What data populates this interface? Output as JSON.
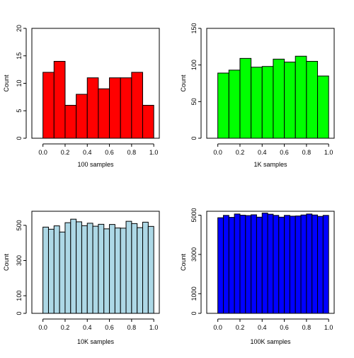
{
  "chart_data": [
    {
      "type": "bar",
      "xlabel": "100 samples",
      "ylabel": "Count",
      "xlim": [
        -0.1,
        1.05
      ],
      "ylim": [
        0,
        20
      ],
      "xticks": [
        "0.0",
        "0.2",
        "0.4",
        "0.6",
        "0.8",
        "1.0"
      ],
      "yticks": [
        "0",
        "5",
        "10",
        "15",
        "20"
      ],
      "bin_edges": [
        0.0,
        0.1,
        0.2,
        0.3,
        0.4,
        0.5,
        0.6,
        0.7,
        0.8,
        0.9,
        1.0
      ],
      "values": [
        12,
        14,
        6,
        8,
        11,
        9,
        11,
        11,
        12,
        6
      ],
      "fill_color": "#ff0000",
      "grid": false
    },
    {
      "type": "bar",
      "xlabel": "1K samples",
      "ylabel": "Count",
      "xlim": [
        -0.1,
        1.05
      ],
      "ylim": [
        0,
        150
      ],
      "xticks": [
        "0.0",
        "0.2",
        "0.4",
        "0.6",
        "0.8",
        "1.0"
      ],
      "yticks": [
        "0",
        "50",
        "100",
        "150"
      ],
      "bin_edges": [
        0.0,
        0.1,
        0.2,
        0.3,
        0.4,
        0.5,
        0.6,
        0.7,
        0.8,
        0.9,
        1.0
      ],
      "values": [
        89,
        93,
        109,
        97,
        98,
        108,
        104,
        112,
        105,
        85
      ],
      "fill_color": "#00ff00",
      "grid": false
    },
    {
      "type": "bar",
      "xlabel": "10K samples",
      "ylabel": "Count",
      "xlim": [
        -0.1,
        1.05
      ],
      "ylim": [
        0,
        580
      ],
      "xticks": [
        "0.0",
        "0.2",
        "0.4",
        "0.6",
        "0.8",
        "1.0"
      ],
      "yticks": [
        "0",
        "100",
        "300",
        "500"
      ],
      "bin_edges": [
        0.0,
        0.05,
        0.1,
        0.15,
        0.2,
        0.25,
        0.3,
        0.35,
        0.4,
        0.45,
        0.5,
        0.55,
        0.6,
        0.65,
        0.7,
        0.75,
        0.8,
        0.85,
        0.9,
        0.95,
        1.0
      ],
      "values": [
        490,
        478,
        497,
        462,
        515,
        535,
        520,
        498,
        512,
        495,
        506,
        480,
        505,
        485,
        484,
        523,
        510,
        487,
        518,
        494
      ],
      "fill_color": "#add8e6",
      "grid": false
    },
    {
      "type": "bar",
      "xlabel": "100K samples",
      "ylabel": "Count",
      "xlim": [
        -0.1,
        1.05
      ],
      "ylim": [
        0,
        5200
      ],
      "xticks": [
        "0.0",
        "0.2",
        "0.4",
        "0.6",
        "0.8",
        "1.0"
      ],
      "yticks": [
        "0",
        "1000",
        "3000",
        "5000"
      ],
      "bin_edges": [
        0.0,
        0.05,
        0.1,
        0.15,
        0.2,
        0.25,
        0.3,
        0.35,
        0.4,
        0.45,
        0.5,
        0.55,
        0.6,
        0.65,
        0.7,
        0.75,
        0.8,
        0.85,
        0.9,
        0.95,
        1.0
      ],
      "values": [
        4870,
        4990,
        4890,
        5060,
        5000,
        4980,
        5020,
        4900,
        5110,
        5050,
        4990,
        4900,
        4990,
        4950,
        4960,
        5010,
        5060,
        5010,
        4940,
        4990
      ],
      "fill_color": "#0000ff",
      "grid": false
    }
  ]
}
